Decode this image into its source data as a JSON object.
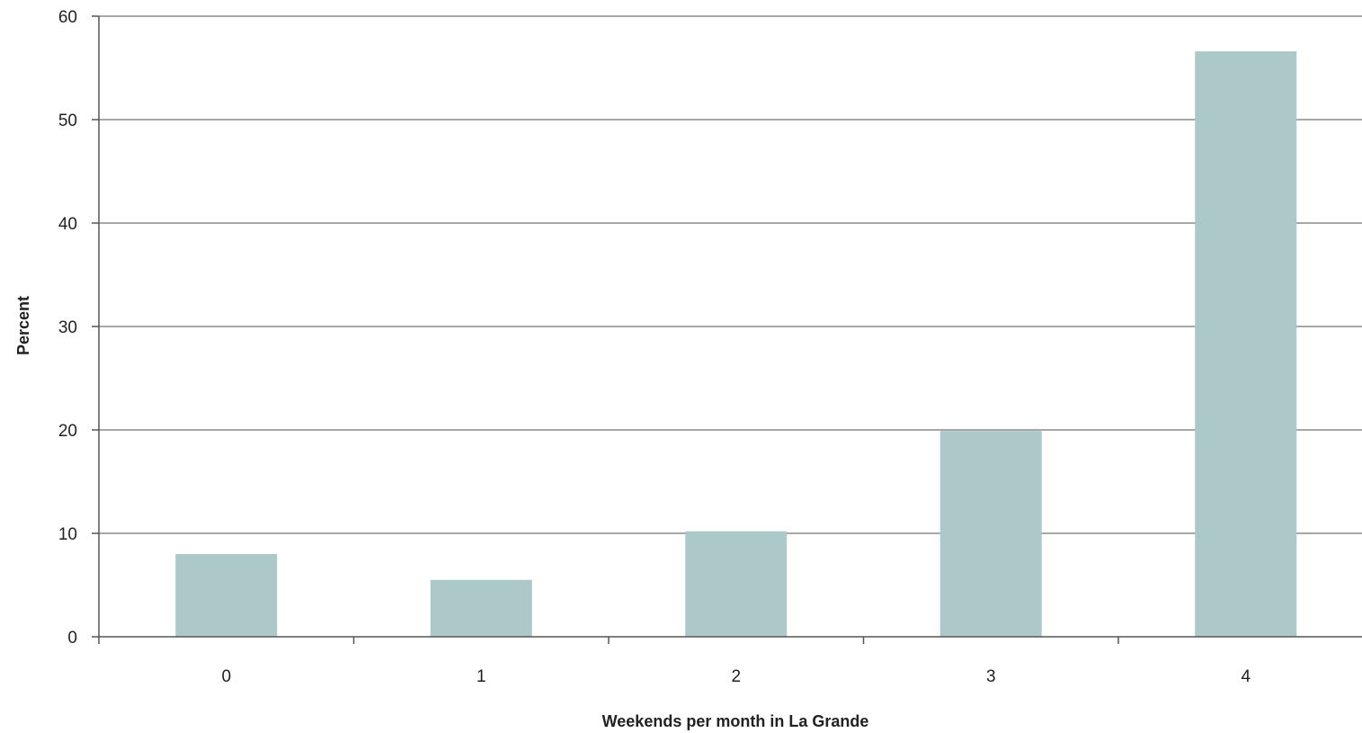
{
  "chart_data": {
    "type": "bar",
    "categories": [
      "0",
      "1",
      "2",
      "3",
      "4"
    ],
    "values": [
      8,
      5.5,
      10.2,
      19.9,
      56.6
    ],
    "title": "",
    "xlabel": "Weekends per month in La Grande",
    "ylabel": "Percent",
    "ylim": [
      0,
      60
    ],
    "yticks": [
      0,
      10,
      20,
      30,
      40,
      50,
      60
    ],
    "grid": true,
    "legend": "none",
    "bar_color": "#adc8c8",
    "grid_color": "#8a8a8a",
    "axis_color": "#555555"
  }
}
